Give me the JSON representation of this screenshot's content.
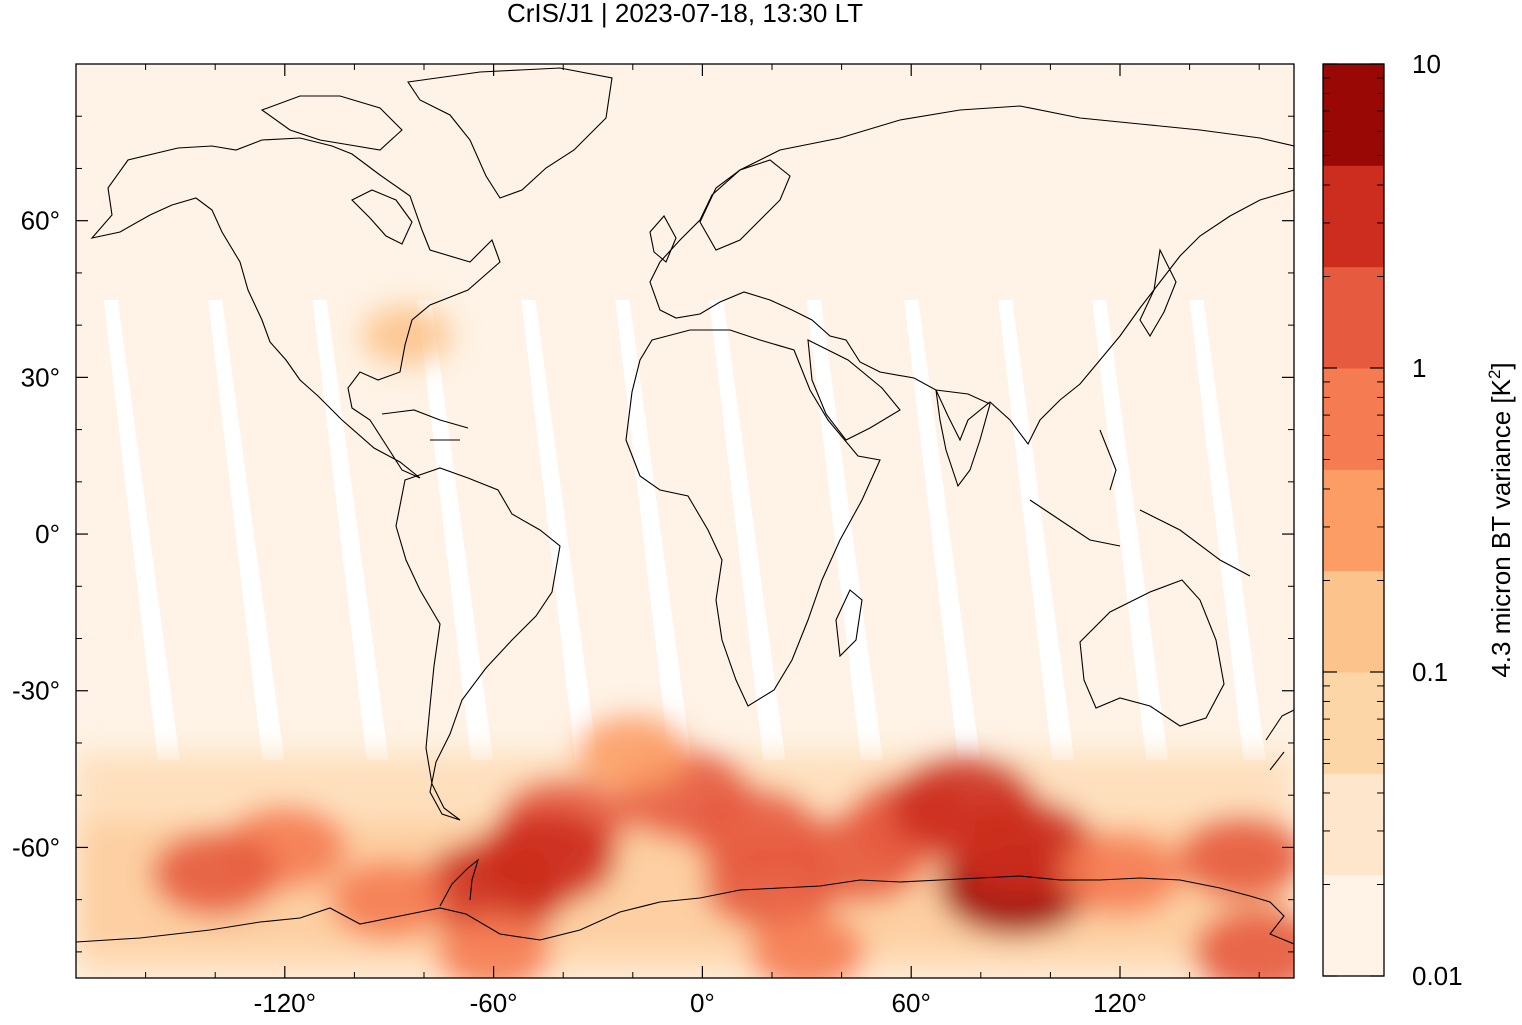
{
  "chart_data": {
    "type": "heatmap",
    "title": "CrIS/J1 | 2023-07-18, 13:30 LT",
    "xlabel": "",
    "ylabel": "",
    "xlim": [
      -180,
      170
    ],
    "ylim": [
      -85,
      90
    ],
    "x_ticks": [
      -120,
      -60,
      0,
      60,
      120
    ],
    "x_tick_labels": [
      "-120°",
      "-60°",
      "0°",
      "60°",
      "120°"
    ],
    "y_ticks": [
      60,
      30,
      0,
      -30,
      -60
    ],
    "y_tick_labels": [
      "60°",
      "30°",
      "0°",
      "-30°",
      "-60°"
    ],
    "colorbar": {
      "label_main": "4.3 micron BT variance [K",
      "label_sup": "2",
      "label_end": "]",
      "scale": "log",
      "range": [
        0.01,
        10
      ],
      "tick_values": [
        10,
        1,
        0.1,
        0.01
      ],
      "tick_labels": [
        "10",
        "1",
        "0.1",
        "0.01"
      ],
      "bins": 9,
      "colors": [
        "#fef3e6",
        "#fde6cb",
        "#fdd6a8",
        "#fdc38c",
        "#fc9d66",
        "#f57b52",
        "#e65a3f",
        "#cc2d1e",
        "#9a0806"
      ]
    },
    "intensity_regions": [
      {
        "lon": -40,
        "lat": -55,
        "value": 1.2
      },
      {
        "lon": -60,
        "lat": -68,
        "value": 4.0
      },
      {
        "lon": -45,
        "lat": -62,
        "value": 2.5
      },
      {
        "lon": -5,
        "lat": -50,
        "value": 1.6
      },
      {
        "lon": 15,
        "lat": -57,
        "value": 1.3
      },
      {
        "lon": 20,
        "lat": -67,
        "value": 2.0
      },
      {
        "lon": 45,
        "lat": -62,
        "value": 1.6
      },
      {
        "lon": 90,
        "lat": -67,
        "value": 6.0
      },
      {
        "lon": 92,
        "lat": -60,
        "value": 3.5
      },
      {
        "lon": 60,
        "lat": -55,
        "value": 1.2
      },
      {
        "lon": -120,
        "lat": -60,
        "value": 0.9
      },
      {
        "lon": -140,
        "lat": -65,
        "value": 1.1
      },
      {
        "lon": 155,
        "lat": -62,
        "value": 1.0
      },
      {
        "lon": 160,
        "lat": -80,
        "value": 1.4
      },
      {
        "lon": -90,
        "lat": -70,
        "value": 0.6
      },
      {
        "lon": 120,
        "lat": -65,
        "value": 0.8
      },
      {
        "lon": -20,
        "lat": -42,
        "value": 0.4
      },
      {
        "lon": -85,
        "lat": 38,
        "value": 0.1
      },
      {
        "lon": -60,
        "lat": -80,
        "value": 0.5
      },
      {
        "lon": 30,
        "lat": -80,
        "value": 0.5
      },
      {
        "lon": 75,
        "lat": -52,
        "value": 4.0
      }
    ]
  }
}
